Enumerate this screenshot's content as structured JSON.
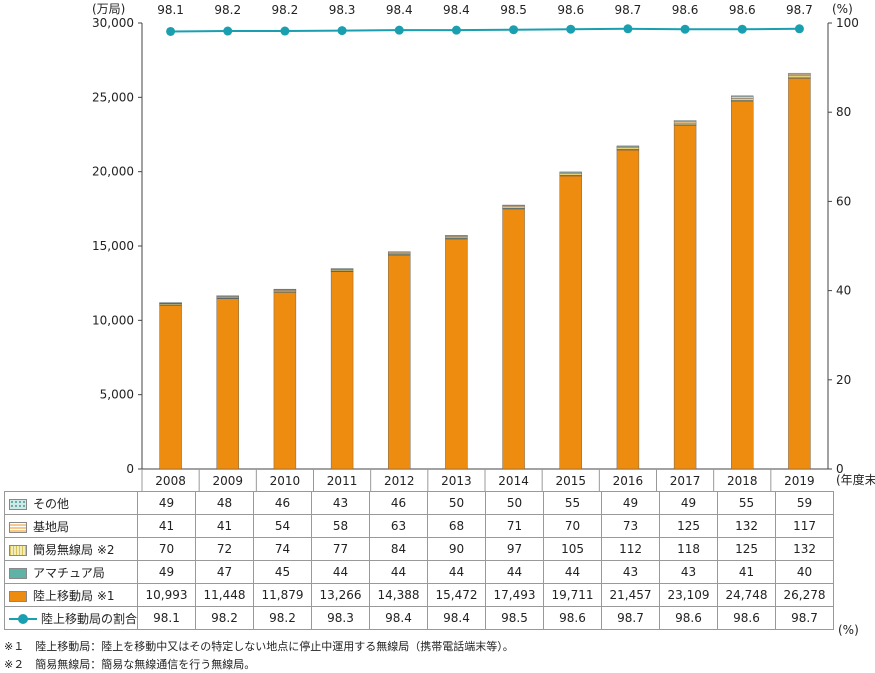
{
  "chart_data": {
    "type": "bar",
    "stacked": true,
    "categories": [
      "2008",
      "2009",
      "2010",
      "2011",
      "2012",
      "2013",
      "2014",
      "2015",
      "2016",
      "2017",
      "2018",
      "2019"
    ],
    "y_unit_label": "(万局)",
    "y2_unit_label": "(%)",
    "x_unit_label": "(年度末)",
    "ylim": [
      0,
      30000
    ],
    "y_ticks": [
      "0",
      "5,000",
      "10,000",
      "15,000",
      "20,000",
      "25,000",
      "30,000"
    ],
    "y2lim": [
      0,
      100
    ],
    "y2_ticks": [
      "0",
      "20",
      "40",
      "60",
      "80",
      "100"
    ],
    "series": [
      {
        "name": "陸上移動局 ※1",
        "color": "#ee8c10",
        "values": [
          10993,
          11448,
          11879,
          13266,
          14388,
          15472,
          17493,
          19711,
          21457,
          23109,
          24748,
          26278
        ],
        "labels": [
          "10,993",
          "11,448",
          "11,879",
          "13,266",
          "14,388",
          "15,472",
          "17,493",
          "19,711",
          "21,457",
          "23,109",
          "24,748",
          "26,278"
        ]
      },
      {
        "name": "アマチュア局",
        "color": "#5fb3a6",
        "values": [
          49,
          47,
          45,
          44,
          44,
          44,
          44,
          44,
          43,
          43,
          41,
          40
        ],
        "labels": [
          "49",
          "47",
          "45",
          "44",
          "44",
          "44",
          "44",
          "44",
          "43",
          "43",
          "41",
          "40"
        ]
      },
      {
        "name": "簡易無線局 ※2",
        "color": "#e4d27a",
        "values": [
          70,
          72,
          74,
          77,
          84,
          90,
          97,
          105,
          112,
          118,
          125,
          132
        ],
        "labels": [
          "70",
          "72",
          "74",
          "77",
          "84",
          "90",
          "97",
          "105",
          "112",
          "118",
          "125",
          "132"
        ]
      },
      {
        "name": "基地局",
        "color": "#f6c98c",
        "values": [
          41,
          41,
          54,
          58,
          63,
          68,
          71,
          70,
          73,
          125,
          132,
          117
        ],
        "labels": [
          "41",
          "41",
          "54",
          "58",
          "63",
          "68",
          "71",
          "70",
          "73",
          "125",
          "132",
          "117"
        ]
      },
      {
        "name": "その他",
        "color": "#bfe3df",
        "values": [
          49,
          48,
          46,
          43,
          46,
          50,
          50,
          55,
          49,
          49,
          55,
          59
        ],
        "labels": [
          "49",
          "48",
          "46",
          "43",
          "46",
          "50",
          "50",
          "55",
          "49",
          "49",
          "55",
          "59"
        ]
      }
    ],
    "line_series": {
      "name": "陸上移動局の割合",
      "color": "#1a9fb0",
      "axis": "right",
      "values": [
        98.1,
        98.2,
        98.2,
        98.3,
        98.4,
        98.4,
        98.5,
        98.6,
        98.7,
        98.6,
        98.6,
        98.7
      ],
      "labels": [
        "98.1",
        "98.2",
        "98.2",
        "98.3",
        "98.4",
        "98.4",
        "98.5",
        "98.6",
        "98.7",
        "98.6",
        "98.6",
        "98.7"
      ]
    },
    "table_row_order": [
      "その他",
      "基地局",
      "簡易無線局 ※2",
      "アマチュア局",
      "陸上移動局 ※1",
      "陸上移動局の割合"
    ],
    "table_unit": "(%)",
    "notes": [
      "※１　陸上移動局：陸上を移動中又はその特定しない地点に停止中運用する無線局（携帯電話端末等）。",
      "※２　簡易無線局：簡易な無線通信を行う無線局。"
    ]
  }
}
